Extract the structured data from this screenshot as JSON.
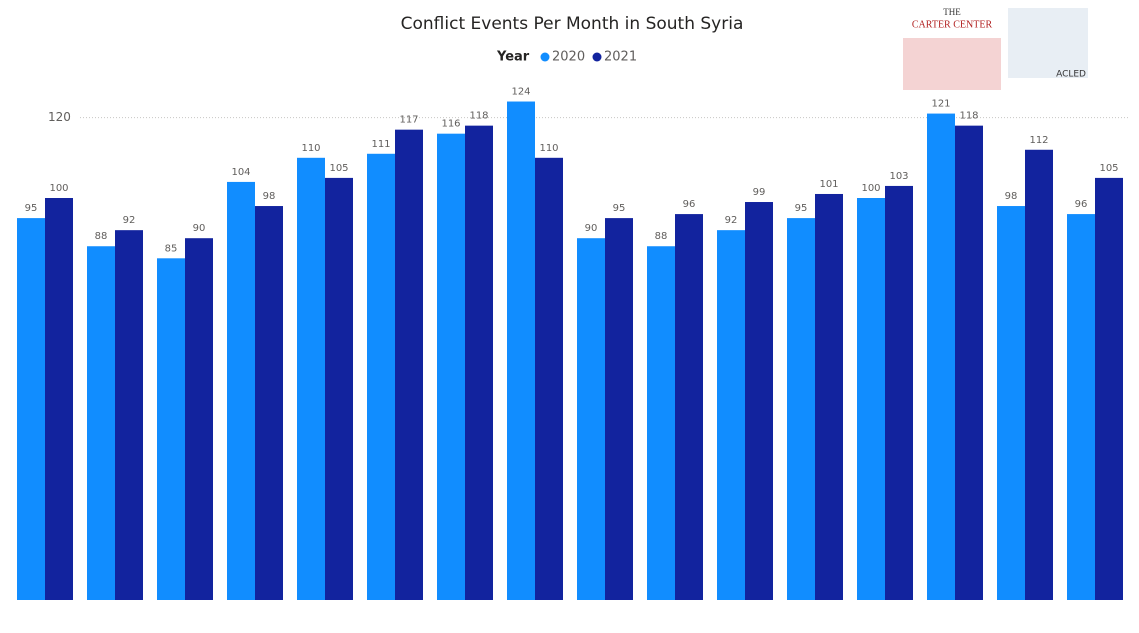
{
  "chart_data": {
    "type": "bar",
    "title": "Conflict Events Per Month in South Syria",
    "legend_title": "Year",
    "categories": [
      null,
      null,
      null,
      null,
      null,
      null,
      null,
      null,
      null,
      null,
      null,
      null,
      null,
      null,
      null,
      null
    ],
    "series": [
      {
        "name": "2020",
        "color": "#118dff",
        "values": [
          95,
          88,
          85,
          104,
          110,
          111,
          116,
          124,
          90,
          88,
          92,
          95,
          100,
          121,
          98,
          96
        ]
      },
      {
        "name": "2021",
        "color": "#12239e",
        "values": [
          100,
          92,
          90,
          98,
          105,
          117,
          118,
          110,
          95,
          96,
          99,
          101,
          103,
          118,
          112,
          105
        ]
      }
    ],
    "ylim": [
      0,
      130
    ],
    "yticks": [
      120
    ],
    "grid": true,
    "logos": {
      "carter_top": "THE",
      "carter_name": "CARTER CENTER",
      "acled": "ACLED"
    }
  }
}
